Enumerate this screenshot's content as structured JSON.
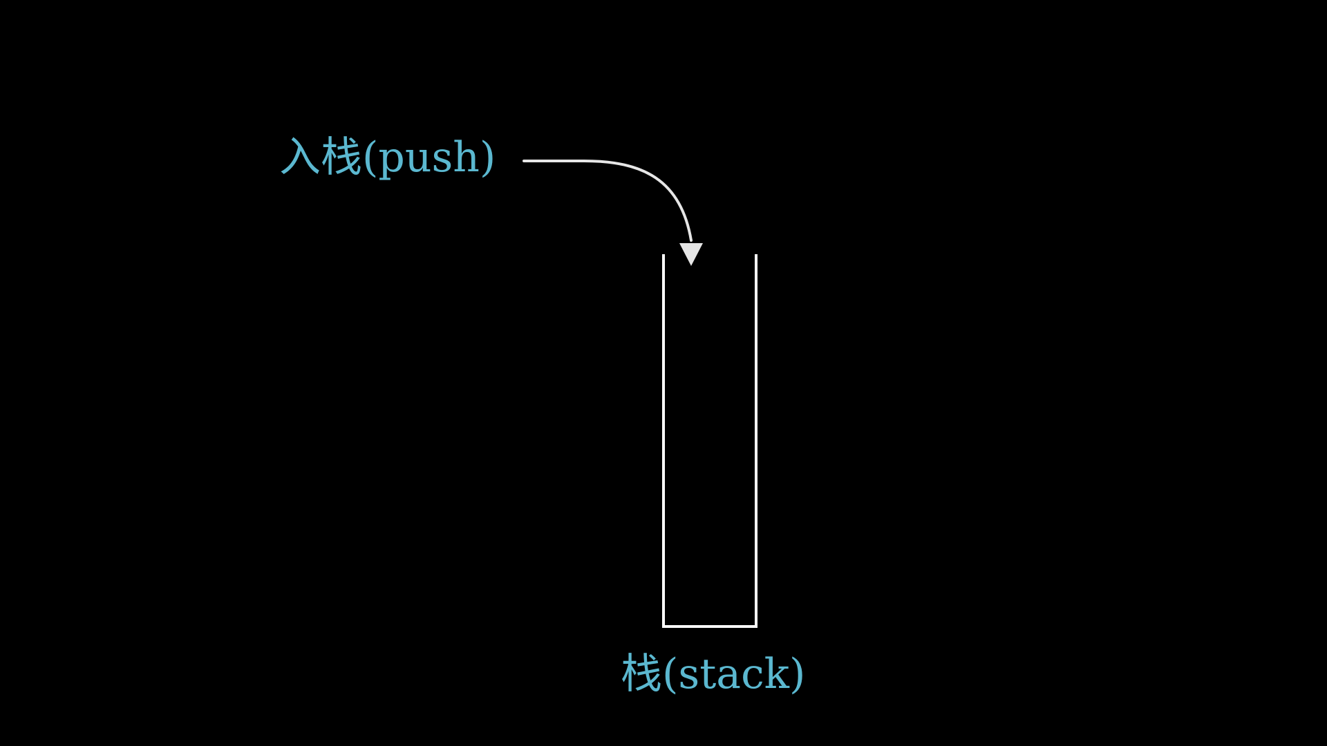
{
  "labels": {
    "push": "入栈(push)",
    "stack": "栈(stack)"
  },
  "colors": {
    "background": "#000000",
    "label_text": "#5bb8d0",
    "lines": "#ffffff",
    "arrow": "#e6e6e6"
  },
  "icons": {
    "arrow": "curved-arrow-down-icon"
  }
}
